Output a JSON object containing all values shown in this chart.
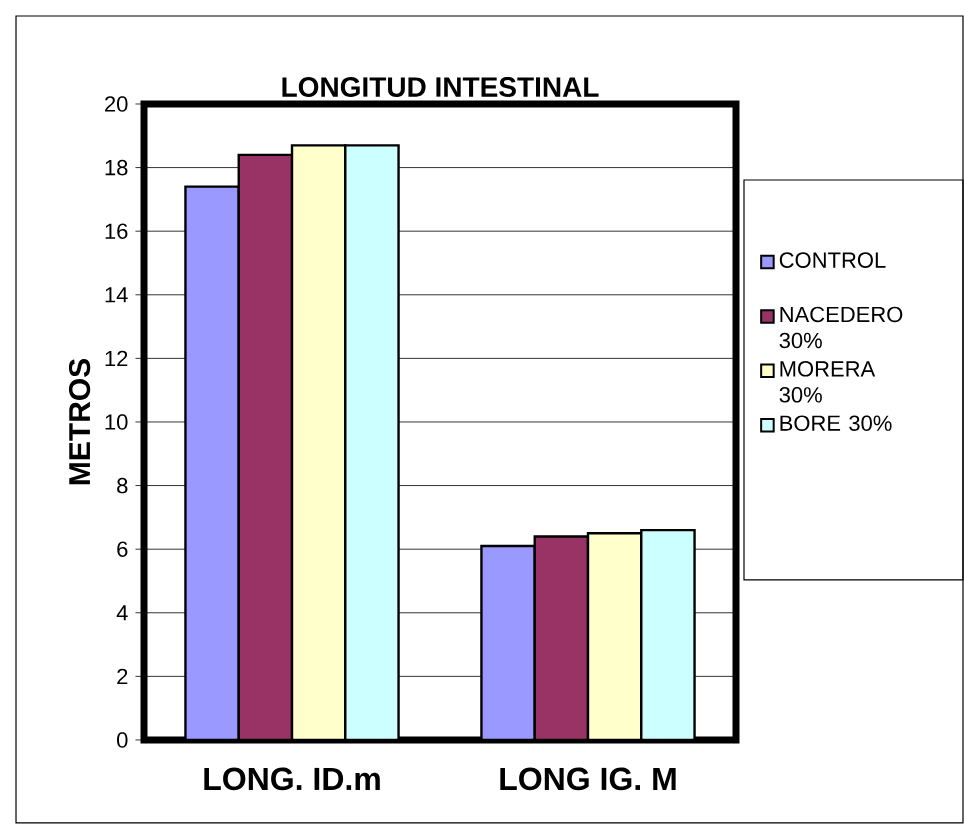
{
  "chart_data": {
    "type": "bar",
    "title": "LONGITUD INTESTINAL",
    "ylabel": "METROS",
    "categories": [
      "LONG. ID.m",
      "LONG IG. M"
    ],
    "series": [
      {
        "name": "CONTROL",
        "color": "#9999ff",
        "values": [
          17.4,
          6.1
        ]
      },
      {
        "name": "NACEDERO 30%",
        "color": "#993366",
        "values": [
          18.4,
          6.4
        ]
      },
      {
        "name": "MORERA 30%",
        "color": "#ffffcc",
        "values": [
          18.7,
          6.5
        ]
      },
      {
        "name": "BORE 30%",
        "color": "#ccffff",
        "values": [
          18.7,
          6.6
        ]
      }
    ],
    "ylim": [
      0,
      20
    ],
    "yticks": [
      0,
      2,
      4,
      6,
      8,
      10,
      12,
      14,
      16,
      18,
      20
    ],
    "grid": "y",
    "legend": "right"
  }
}
